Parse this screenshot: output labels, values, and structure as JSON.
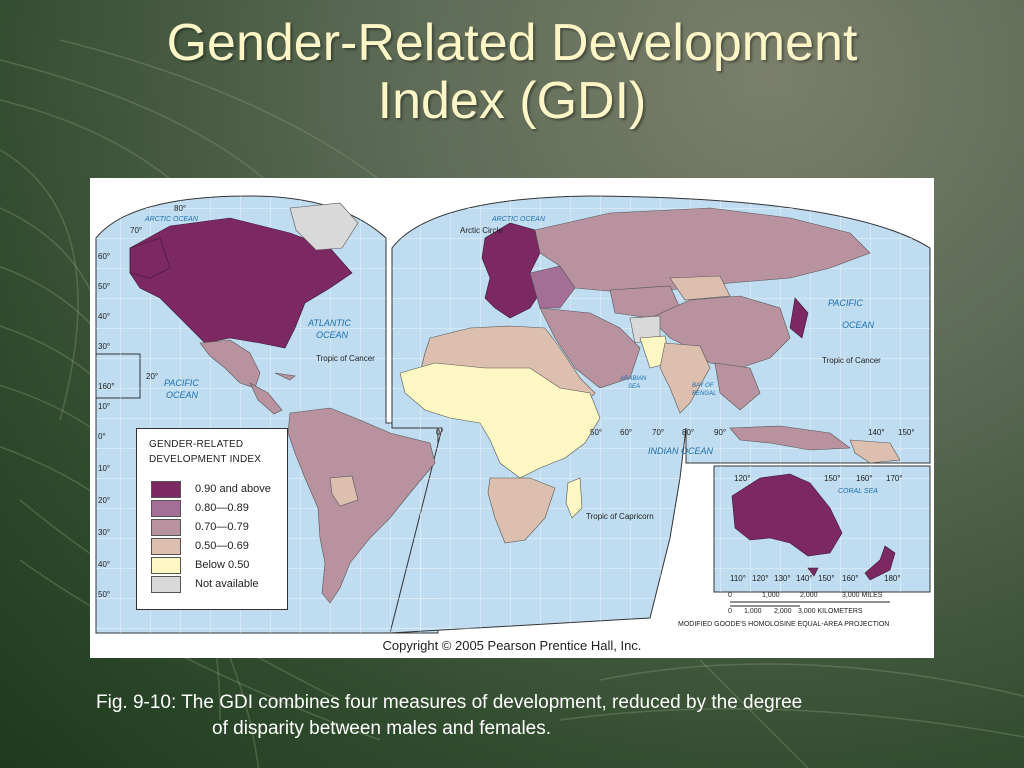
{
  "slide": {
    "title_line1": "Gender-Related Development",
    "title_line2": "Index (GDI)",
    "caption_line1": "Fig. 9-10: The GDI combines four measures of development, reduced by the degree",
    "caption_line2": "of disparity between males and females."
  },
  "map": {
    "copyright": "Copyright © 2005 Pearson Prentice Hall, Inc.",
    "legend": {
      "title_line1": "GENDER-RELATED",
      "title_line2": "DEVELOPMENT INDEX",
      "items": [
        {
          "label": "0.90 and above",
          "color": "#7b2863"
        },
        {
          "label": "0.80—0.89",
          "color": "#a36f96"
        },
        {
          "label": "0.70—0.79",
          "color": "#b8929f"
        },
        {
          "label": "0.50—0.69",
          "color": "#dcbfae"
        },
        {
          "label": "Below 0.50",
          "color": "#fdf8c3"
        },
        {
          "label": "Not available",
          "color": "#d9d9d9"
        }
      ]
    },
    "oceans": {
      "arctic_w": "ARCTIC OCEAN",
      "arctic_e": "ARCTIC OCEAN",
      "atlantic_1": "ATLANTIC",
      "atlantic_2": "OCEAN",
      "pacific_w1": "PACIFIC",
      "pacific_w2": "OCEAN",
      "pacific_e1": "PACIFIC",
      "pacific_e2": "OCEAN",
      "indian": "INDIAN      OCEAN",
      "arabian_1": "ARABIAN",
      "arabian_2": "SEA",
      "bengal_1": "BAY OF",
      "bengal_2": "BENGAL",
      "coral": "CORAL   SEA"
    },
    "lines": {
      "arctic_circle": "Arctic Circle",
      "cancer_w": "Tropic of Cancer",
      "cancer_e": "Tropic of Cancer",
      "capricorn": "Tropic of Capricorn"
    },
    "lat_left": [
      "80°",
      "70°",
      "60°",
      "50°",
      "40°",
      "30°",
      "20°",
      "10°",
      "0°",
      "10°",
      "20°",
      "30°",
      "40°",
      "50°"
    ],
    "lon_labels": {
      "l160": "160°",
      "b50": "50°",
      "b60": "60°",
      "b70": "70°",
      "b80": "80°",
      "b90": "90°",
      "b0": "0°",
      "r140": "140°",
      "r150": "150°",
      "au120": "120°",
      "au150": "150°",
      "au160": "160°",
      "au170": "170°",
      "aub110": "110°",
      "aub120": "120°",
      "aub130": "130°",
      "aub140": "140°",
      "aub150": "150°",
      "aub160": "160°",
      "aub180": "180°"
    },
    "scale": {
      "miles": [
        "0",
        "1,000",
        "2,000",
        "3,000 MILES"
      ],
      "km": [
        "0",
        "1,000",
        "2,000",
        "3,000 KILOMETERS"
      ],
      "projection": "MODIFIED GOODE'S HOMOLOSINE EQUAL-AREA PROJECTION"
    }
  }
}
